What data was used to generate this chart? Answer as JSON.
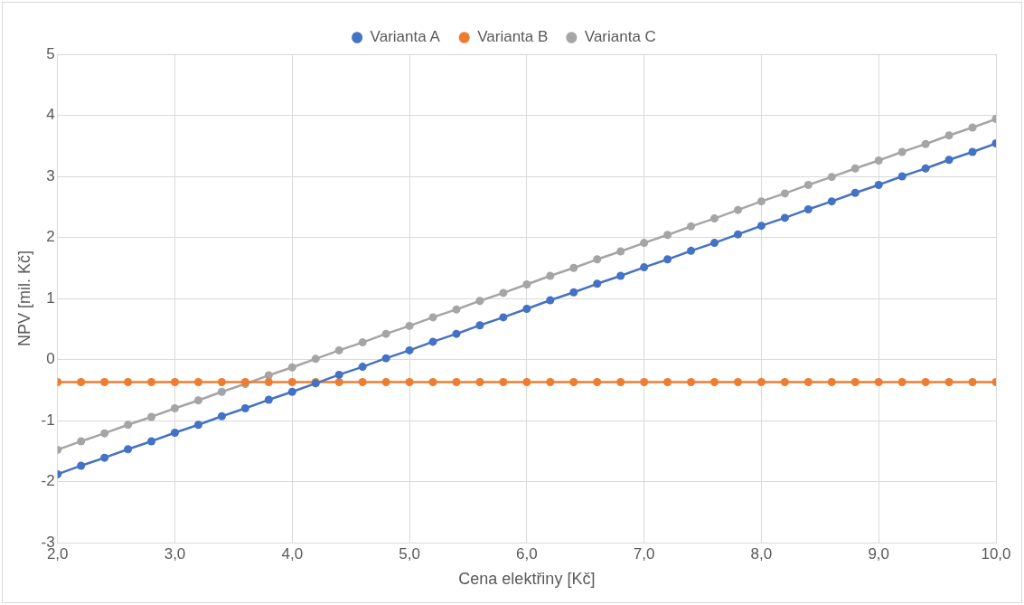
{
  "chart_data": {
    "type": "line",
    "xlabel": "Cena elektřiny [Kč]",
    "ylabel": "NPV [mil. Kč]",
    "x": [
      2.0,
      2.2,
      2.4,
      2.6,
      2.8,
      3.0,
      3.2,
      3.4,
      3.6,
      3.8,
      4.0,
      4.2,
      4.4,
      4.6,
      4.8,
      5.0,
      5.2,
      5.4,
      5.6,
      5.8,
      6.0,
      6.2,
      6.4,
      6.6,
      6.8,
      7.0,
      7.2,
      7.4,
      7.6,
      7.8,
      8.0,
      8.2,
      8.4,
      8.6,
      8.8,
      9.0,
      9.2,
      9.4,
      9.6,
      9.8,
      10.0
    ],
    "series": [
      {
        "name": "Varianta A",
        "color": "#4472c4",
        "values": [
          -1.88,
          -1.74,
          -1.61,
          -1.47,
          -1.34,
          -1.2,
          -1.07,
          -0.93,
          -0.8,
          -0.66,
          -0.53,
          -0.39,
          -0.25,
          -0.12,
          0.02,
          0.15,
          0.29,
          0.42,
          0.56,
          0.69,
          0.83,
          0.97,
          1.1,
          1.24,
          1.37,
          1.51,
          1.64,
          1.78,
          1.91,
          2.05,
          2.19,
          2.32,
          2.46,
          2.59,
          2.73,
          2.86,
          3.0,
          3.13,
          3.27,
          3.4,
          3.54
        ]
      },
      {
        "name": "Varianta B",
        "color": "#ed7d31",
        "values": [
          -0.37,
          -0.37,
          -0.37,
          -0.37,
          -0.37,
          -0.37,
          -0.37,
          -0.37,
          -0.37,
          -0.37,
          -0.37,
          -0.37,
          -0.37,
          -0.37,
          -0.37,
          -0.37,
          -0.37,
          -0.37,
          -0.37,
          -0.37,
          -0.37,
          -0.37,
          -0.37,
          -0.37,
          -0.37,
          -0.37,
          -0.37,
          -0.37,
          -0.37,
          -0.37,
          -0.37,
          -0.37,
          -0.37,
          -0.37,
          -0.37,
          -0.37,
          -0.37,
          -0.37,
          -0.37,
          -0.37,
          -0.37
        ]
      },
      {
        "name": "Varianta C",
        "color": "#a5a5a5",
        "values": [
          -1.48,
          -1.34,
          -1.21,
          -1.07,
          -0.94,
          -0.8,
          -0.67,
          -0.53,
          -0.4,
          -0.26,
          -0.13,
          0.01,
          0.15,
          0.28,
          0.42,
          0.55,
          0.69,
          0.82,
          0.96,
          1.09,
          1.23,
          1.37,
          1.5,
          1.64,
          1.77,
          1.91,
          2.04,
          2.18,
          2.31,
          2.45,
          2.59,
          2.72,
          2.86,
          2.99,
          3.13,
          3.26,
          3.4,
          3.53,
          3.67,
          3.8,
          3.94
        ]
      }
    ],
    "xlim": [
      2,
      10
    ],
    "xticks": [
      {
        "value": 2,
        "label": "2,0"
      },
      {
        "value": 3,
        "label": "3,0"
      },
      {
        "value": 4,
        "label": "4,0"
      },
      {
        "value": 5,
        "label": "5,0"
      },
      {
        "value": 6,
        "label": "6,0"
      },
      {
        "value": 7,
        "label": "7,0"
      },
      {
        "value": 8,
        "label": "8,0"
      },
      {
        "value": 9,
        "label": "9,0"
      },
      {
        "value": 10,
        "label": "10,0"
      }
    ],
    "ylim": [
      -3,
      5
    ],
    "yticks": [
      -3,
      -2,
      -1,
      0,
      1,
      2,
      3,
      4,
      5
    ],
    "grid": true,
    "legend": "top",
    "marker": "circle",
    "line_style": "solid"
  }
}
